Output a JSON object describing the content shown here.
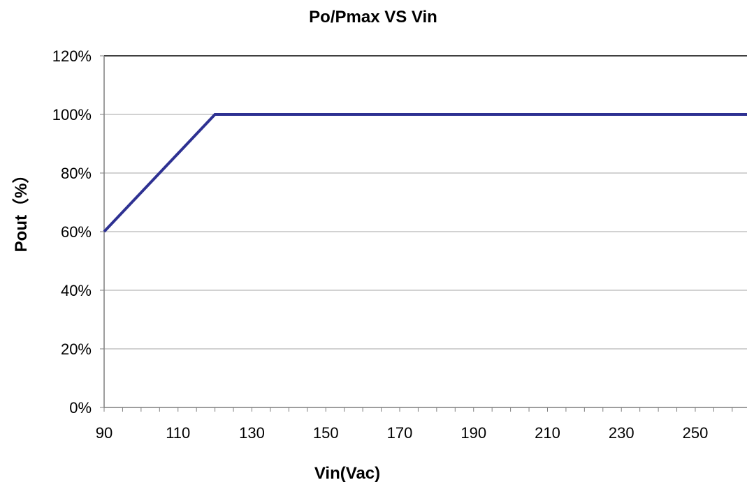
{
  "chart_data": {
    "type": "line",
    "title": "Po/Pmax VS Vin",
    "xlabel": "Vin(Vac)",
    "ylabel": "Pout（%）",
    "x_ticks": [
      "90",
      "110",
      "130",
      "150",
      "170",
      "190",
      "210",
      "230",
      "250"
    ],
    "y_ticks": [
      "0%",
      "20%",
      "40%",
      "60%",
      "80%",
      "100%",
      "120%"
    ],
    "xlim": [
      90,
      264
    ],
    "ylim": [
      0,
      120
    ],
    "grid": "horizontal",
    "legend": "none",
    "series": [
      {
        "color": "#2e3192",
        "points": [
          [
            90,
            60
          ],
          [
            120,
            100
          ],
          [
            264,
            100
          ]
        ]
      }
    ]
  }
}
